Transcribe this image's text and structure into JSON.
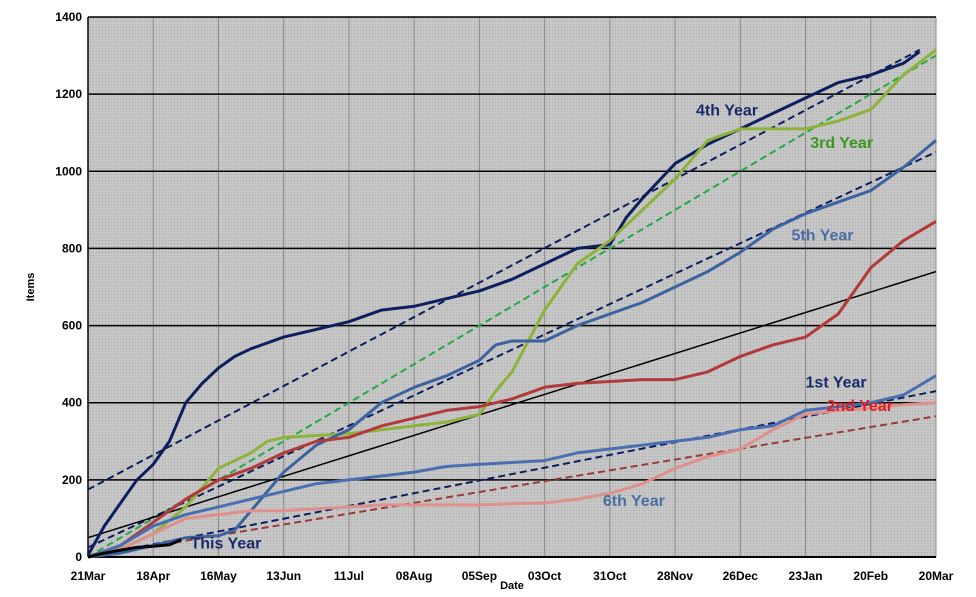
{
  "chart_data": {
    "type": "line",
    "xlabel": "Date",
    "ylabel": "Items",
    "ylim": [
      0,
      1400
    ],
    "yticks": [
      0,
      200,
      400,
      600,
      800,
      1000,
      1200,
      1400
    ],
    "xlim": [
      0,
      364
    ],
    "x_ticks": [
      {
        "x": 0,
        "label": "21Mar"
      },
      {
        "x": 28,
        "label": "18Apr"
      },
      {
        "x": 56,
        "label": "16May"
      },
      {
        "x": 84,
        "label": "13Jun"
      },
      {
        "x": 112,
        "label": "11Jul"
      },
      {
        "x": 140,
        "label": "08Aug"
      },
      {
        "x": 168,
        "label": "05Sep"
      },
      {
        "x": 196,
        "label": "03Oct"
      },
      {
        "x": 224,
        "label": "31Oct"
      },
      {
        "x": 252,
        "label": "28Nov"
      },
      {
        "x": 280,
        "label": "26Dec"
      },
      {
        "x": 308,
        "label": "23Jan"
      },
      {
        "x": 336,
        "label": "20Feb"
      },
      {
        "x": 364,
        "label": "20Mar"
      }
    ],
    "grid": true,
    "background": "#c8c8c8",
    "series": [
      {
        "name": "4th Year",
        "color": "#0d1f5e",
        "label_at": [
          261,
          1145
        ],
        "label_color": "#1a2b6b",
        "x": [
          0,
          7,
          14,
          21,
          28,
          35,
          42,
          49,
          56,
          63,
          70,
          84,
          98,
          112,
          126,
          140,
          154,
          168,
          182,
          196,
          210,
          224,
          231,
          238,
          252,
          266,
          280,
          294,
          308,
          322,
          336,
          350,
          357
        ],
        "y": [
          5,
          80,
          140,
          200,
          240,
          300,
          400,
          450,
          490,
          520,
          540,
          570,
          590,
          610,
          640,
          650,
          670,
          690,
          720,
          760,
          800,
          810,
          880,
          930,
          1020,
          1070,
          1110,
          1150,
          1190,
          1230,
          1250,
          1280,
          1310
        ]
      },
      {
        "name": "3rd Year",
        "color": "#8db33a",
        "label_at": [
          310,
          1060
        ],
        "label_color": "#3a9a20",
        "x": [
          0,
          14,
          28,
          42,
          56,
          70,
          77,
          84,
          98,
          112,
          126,
          140,
          154,
          168,
          175,
          182,
          189,
          196,
          203,
          210,
          224,
          238,
          252,
          266,
          280,
          294,
          308,
          322,
          336,
          350,
          364
        ],
        "y": [
          0,
          20,
          60,
          130,
          230,
          270,
          300,
          310,
          315,
          320,
          330,
          340,
          350,
          370,
          430,
          480,
          560,
          640,
          700,
          760,
          820,
          900,
          980,
          1080,
          1110,
          1110,
          1110,
          1130,
          1160,
          1250,
          1315
        ]
      },
      {
        "name": "5th Year",
        "color": "#3c62a0",
        "label_at": [
          302,
          820
        ],
        "label_color": "#4a6fa5",
        "x": [
          0,
          14,
          28,
          42,
          56,
          63,
          70,
          84,
          98,
          112,
          126,
          140,
          154,
          168,
          175,
          182,
          196,
          210,
          224,
          238,
          252,
          266,
          280,
          294,
          308,
          322,
          336,
          350,
          364
        ],
        "y": [
          0,
          10,
          30,
          50,
          55,
          70,
          120,
          220,
          290,
          330,
          400,
          440,
          470,
          510,
          550,
          560,
          560,
          600,
          630,
          660,
          700,
          740,
          790,
          850,
          890,
          920,
          950,
          1010,
          1080
        ]
      },
      {
        "name": "2nd Year",
        "color": "#b23a3a",
        "label_at": [
          317,
          378
        ],
        "label_color": "#e02020",
        "x": [
          0,
          14,
          28,
          42,
          56,
          70,
          84,
          98,
          112,
          126,
          140,
          154,
          168,
          182,
          196,
          210,
          224,
          238,
          252,
          266,
          280,
          294,
          308,
          322,
          336,
          350,
          364
        ],
        "y": [
          0,
          30,
          90,
          150,
          200,
          230,
          270,
          300,
          310,
          340,
          360,
          380,
          390,
          410,
          440,
          450,
          455,
          460,
          460,
          480,
          520,
          550,
          570,
          630,
          750,
          820,
          870
        ]
      },
      {
        "name": "1st Year",
        "color": "#4a6fb0",
        "label_at": [
          308,
          440
        ],
        "label_color": "#1a2b6b",
        "x": [
          0,
          14,
          28,
          42,
          56,
          70,
          84,
          98,
          112,
          126,
          140,
          154,
          168,
          182,
          196,
          210,
          224,
          238,
          252,
          266,
          280,
          294,
          308,
          322,
          336,
          350,
          364
        ],
        "y": [
          0,
          30,
          80,
          110,
          130,
          150,
          170,
          190,
          200,
          210,
          220,
          235,
          240,
          245,
          250,
          270,
          280,
          290,
          300,
          310,
          330,
          340,
          380,
          390,
          400,
          420,
          470
        ]
      },
      {
        "name": "6th Year",
        "color": "#e0908a",
        "label_at": [
          221,
          132
        ],
        "label_color": "#4a6fa5",
        "x": [
          0,
          14,
          28,
          42,
          56,
          70,
          84,
          98,
          112,
          126,
          140,
          154,
          168,
          182,
          196,
          210,
          224,
          238,
          252,
          266,
          280,
          294,
          308,
          322,
          336,
          350,
          364
        ],
        "y": [
          0,
          20,
          60,
          100,
          110,
          120,
          120,
          125,
          130,
          135,
          135,
          135,
          135,
          138,
          140,
          150,
          165,
          190,
          230,
          260,
          280,
          330,
          370,
          380,
          385,
          395,
          400
        ]
      },
      {
        "name": "This Year",
        "color": "#000000",
        "label_at": [
          44,
          22
        ],
        "label_color": "#1a2b6b",
        "x": [
          0,
          7,
          14,
          21,
          28,
          35,
          40
        ],
        "y": [
          0,
          10,
          18,
          25,
          28,
          32,
          45
        ]
      }
    ],
    "trend_lines": [
      {
        "color": "#0d1f5e",
        "from": [
          0,
          175
        ],
        "to": [
          357,
          1315
        ]
      },
      {
        "color": "#22aa44",
        "from": [
          0,
          0
        ],
        "to": [
          364,
          1300
        ]
      },
      {
        "color": "#0d1f5e",
        "from": [
          0,
          25
        ],
        "to": [
          364,
          1050
        ]
      },
      {
        "color": "#000000",
        "from": [
          0,
          50
        ],
        "to": [
          364,
          740
        ],
        "solid": true
      },
      {
        "color": "#0d1f5e",
        "from": [
          0,
          0
        ],
        "to": [
          364,
          430
        ]
      },
      {
        "color": "#9a3a3a",
        "from": [
          0,
          0
        ],
        "to": [
          364,
          365
        ]
      }
    ]
  }
}
